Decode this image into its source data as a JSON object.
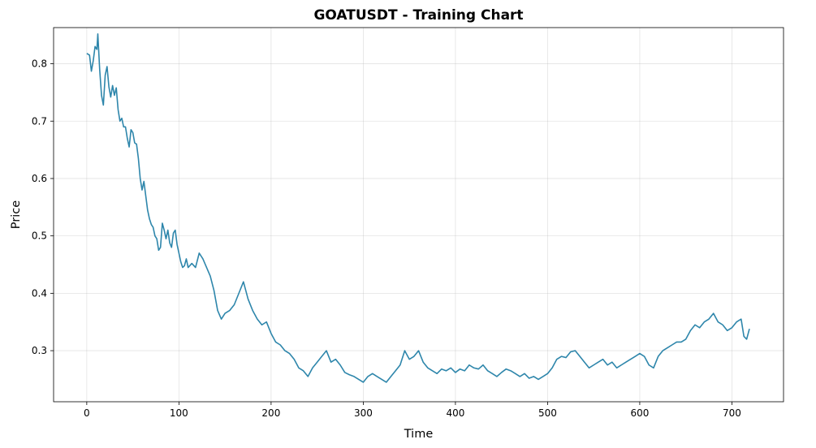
{
  "chart_data": {
    "type": "line",
    "title": "GOATUSDT - Training Chart",
    "xlabel": "Time",
    "ylabel": "Price",
    "xlim": [
      -36,
      756
    ],
    "ylim": [
      0.211,
      0.863
    ],
    "xticks": [
      0,
      100,
      200,
      300,
      400,
      500,
      600,
      700
    ],
    "yticks": [
      0.3,
      0.4,
      0.5,
      0.6,
      0.7,
      0.8
    ],
    "ytick_labels": [
      "0.3",
      "0.4",
      "0.5",
      "0.6",
      "0.7",
      "0.8"
    ],
    "grid": true,
    "line_color": "#2e86ab",
    "series": [
      {
        "x": [
          0,
          3,
          5,
          7,
          9,
          11,
          12,
          14,
          16,
          18,
          20,
          22,
          24,
          26,
          28,
          30,
          32,
          34,
          36,
          38,
          40,
          42,
          44,
          46,
          48,
          50,
          52,
          54,
          56,
          58,
          60,
          62,
          64,
          66,
          68,
          70,
          72,
          74,
          76,
          78,
          80,
          82,
          84,
          86,
          88,
          90,
          92,
          94,
          96,
          98,
          100,
          102,
          104,
          106,
          108,
          110,
          114,
          118,
          122,
          126,
          130,
          134,
          138,
          142,
          146,
          150,
          155,
          160,
          165,
          170,
          175,
          180,
          185,
          190,
          195,
          200,
          205,
          210,
          215,
          220,
          225,
          230,
          235,
          240,
          245,
          250,
          255,
          260,
          265,
          270,
          275,
          280,
          285,
          290,
          295,
          300,
          305,
          310,
          315,
          320,
          325,
          330,
          335,
          340,
          345,
          350,
          355,
          360,
          365,
          370,
          375,
          380,
          385,
          390,
          395,
          400,
          405,
          410,
          415,
          420,
          425,
          430,
          435,
          440,
          445,
          450,
          455,
          460,
          465,
          470,
          475,
          480,
          485,
          490,
          495,
          500,
          505,
          510,
          515,
          520,
          525,
          530,
          535,
          540,
          545,
          550,
          555,
          560,
          565,
          570,
          575,
          580,
          585,
          590,
          595,
          600,
          605,
          610,
          615,
          620,
          625,
          630,
          635,
          640,
          645,
          650,
          655,
          660,
          665,
          670,
          675,
          680,
          685,
          690,
          695,
          700,
          705,
          710,
          713,
          716,
          719
        ],
        "y": [
          0.818,
          0.815,
          0.787,
          0.805,
          0.83,
          0.825,
          0.852,
          0.79,
          0.745,
          0.728,
          0.78,
          0.795,
          0.76,
          0.742,
          0.762,
          0.745,
          0.758,
          0.72,
          0.7,
          0.705,
          0.69,
          0.69,
          0.67,
          0.655,
          0.685,
          0.68,
          0.662,
          0.66,
          0.635,
          0.6,
          0.58,
          0.595,
          0.57,
          0.545,
          0.53,
          0.52,
          0.515,
          0.5,
          0.495,
          0.475,
          0.48,
          0.522,
          0.51,
          0.495,
          0.51,
          0.488,
          0.48,
          0.505,
          0.51,
          0.485,
          0.47,
          0.455,
          0.445,
          0.448,
          0.46,
          0.445,
          0.452,
          0.445,
          0.47,
          0.46,
          0.445,
          0.43,
          0.405,
          0.37,
          0.355,
          0.365,
          0.37,
          0.38,
          0.4,
          0.42,
          0.39,
          0.37,
          0.355,
          0.345,
          0.35,
          0.33,
          0.315,
          0.31,
          0.3,
          0.295,
          0.285,
          0.27,
          0.265,
          0.255,
          0.27,
          0.28,
          0.29,
          0.3,
          0.28,
          0.285,
          0.275,
          0.262,
          0.258,
          0.255,
          0.25,
          0.245,
          0.255,
          0.26,
          0.255,
          0.25,
          0.245,
          0.255,
          0.265,
          0.275,
          0.3,
          0.285,
          0.29,
          0.3,
          0.28,
          0.27,
          0.265,
          0.26,
          0.268,
          0.265,
          0.27,
          0.262,
          0.268,
          0.265,
          0.275,
          0.27,
          0.268,
          0.275,
          0.265,
          0.26,
          0.255,
          0.262,
          0.268,
          0.265,
          0.26,
          0.255,
          0.26,
          0.252,
          0.255,
          0.25,
          0.255,
          0.26,
          0.27,
          0.285,
          0.29,
          0.288,
          0.298,
          0.3,
          0.29,
          0.28,
          0.27,
          0.275,
          0.28,
          0.285,
          0.275,
          0.28,
          0.27,
          0.275,
          0.28,
          0.285,
          0.29,
          0.295,
          0.29,
          0.275,
          0.27,
          0.29,
          0.3,
          0.305,
          0.31,
          0.315,
          0.315,
          0.32,
          0.335,
          0.345,
          0.34,
          0.35,
          0.355,
          0.365,
          0.35,
          0.345,
          0.335,
          0.34,
          0.35,
          0.355,
          0.325,
          0.32,
          0.338
        ]
      }
    ]
  }
}
